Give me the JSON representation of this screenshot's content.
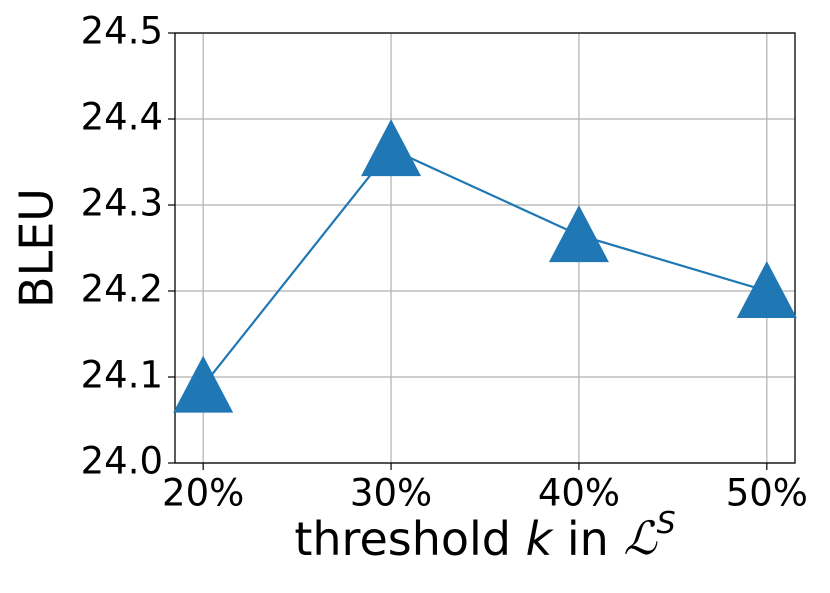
{
  "chart_data": {
    "type": "line",
    "x": [
      20,
      30,
      40,
      50
    ],
    "values": [
      24.09,
      24.365,
      24.265,
      24.2
    ],
    "color": "#1f77b4",
    "marker": "triangle",
    "xlim": [
      18.5,
      51.5
    ],
    "xticks": [
      {
        "value": 20,
        "label": "20%"
      },
      {
        "value": 30,
        "label": "30%"
      },
      {
        "value": 40,
        "label": "40%"
      },
      {
        "value": 50,
        "label": "50%"
      }
    ],
    "ylim": [
      24.0,
      24.5
    ],
    "yticks": [
      {
        "value": 24.0,
        "label": "24.0"
      },
      24.1,
      24.2,
      24.3,
      24.4,
      24.5
    ],
    "ylabel": "BLEU",
    "xlabel": [
      "threshold ",
      "k",
      " in ",
      "ℒ",
      "S"
    ],
    "grid": true
  }
}
